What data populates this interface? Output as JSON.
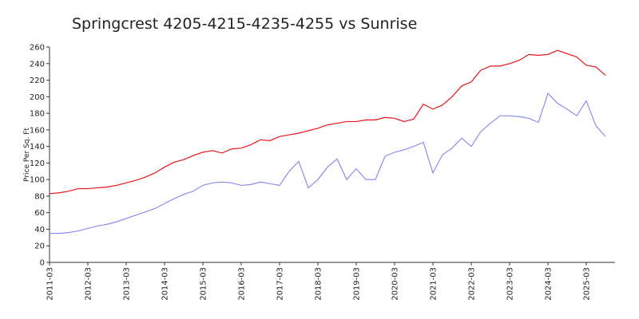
{
  "chart_data": {
    "type": "line",
    "title": "Springcrest 4205-4215-4235-4255 vs Sunrise",
    "y_label": "Price Per Sq. Ft",
    "categories": [
      "2011-03",
      "2011-06",
      "2011-09",
      "2011-12",
      "2012-03",
      "2012-06",
      "2012-09",
      "2012-12",
      "2013-03",
      "2013-06",
      "2013-09",
      "2013-12",
      "2014-03",
      "2014-06",
      "2014-09",
      "2014-12",
      "2015-03",
      "2015-06",
      "2015-09",
      "2015-12",
      "2016-03",
      "2016-06",
      "2016-09",
      "2016-12",
      "2017-03",
      "2017-06",
      "2017-09",
      "2017-12",
      "2018-03",
      "2018-06",
      "2018-09",
      "2018-12",
      "2019-03",
      "2019-06",
      "2019-09",
      "2019-12",
      "2020-03",
      "2020-06",
      "2020-09",
      "2020-12",
      "2021-03",
      "2021-06",
      "2021-09",
      "2021-12",
      "2022-03",
      "2022-06",
      "2022-09",
      "2022-12",
      "2023-03",
      "2023-06",
      "2023-09",
      "2023-12",
      "2024-03",
      "2024-06",
      "2024-09",
      "2024-12",
      "2025-03",
      "2025-06",
      "2025-09"
    ],
    "xticks": [
      "2011-03",
      "2012-03",
      "2013-03",
      "2014-03",
      "2015-03",
      "2016-03",
      "2017-03",
      "2018-03",
      "2019-03",
      "2020-03",
      "2021-03",
      "2022-03",
      "2023-03",
      "2024-03",
      "2025-03"
    ],
    "series": [
      {
        "color": "#e8141a",
        "values": [
          83,
          84,
          86,
          89,
          89,
          90,
          91,
          93,
          96,
          99,
          103,
          108,
          115,
          121,
          124,
          129,
          133,
          135,
          132,
          137,
          138,
          142,
          148,
          147,
          152,
          154,
          156,
          159,
          162,
          166,
          168,
          170,
          170,
          172,
          172,
          175,
          174,
          170,
          173,
          191,
          185,
          190,
          200,
          213,
          218,
          232,
          237,
          237,
          240,
          244,
          251,
          250,
          251,
          256,
          252,
          248,
          238,
          236,
          226
        ]
      },
      {
        "color": "#8c8cf0",
        "values": [
          35,
          35,
          36,
          38,
          41,
          44,
          46,
          49,
          53,
          57,
          61,
          65,
          71,
          77,
          82,
          86,
          93,
          96,
          97,
          96,
          93,
          94,
          97,
          95,
          93,
          110,
          122,
          90,
          100,
          115,
          125,
          100,
          113,
          100,
          100,
          128,
          133,
          136,
          140,
          145,
          108,
          130,
          138,
          150,
          140,
          158,
          168,
          177,
          177,
          176,
          174,
          169,
          204,
          192,
          185,
          177,
          195,
          165,
          152
        ]
      }
    ],
    "ylim": [
      0,
      260
    ],
    "yticks": [
      0,
      20,
      40,
      60,
      80,
      100,
      120,
      140,
      160,
      180,
      200,
      220,
      240,
      260
    ]
  }
}
